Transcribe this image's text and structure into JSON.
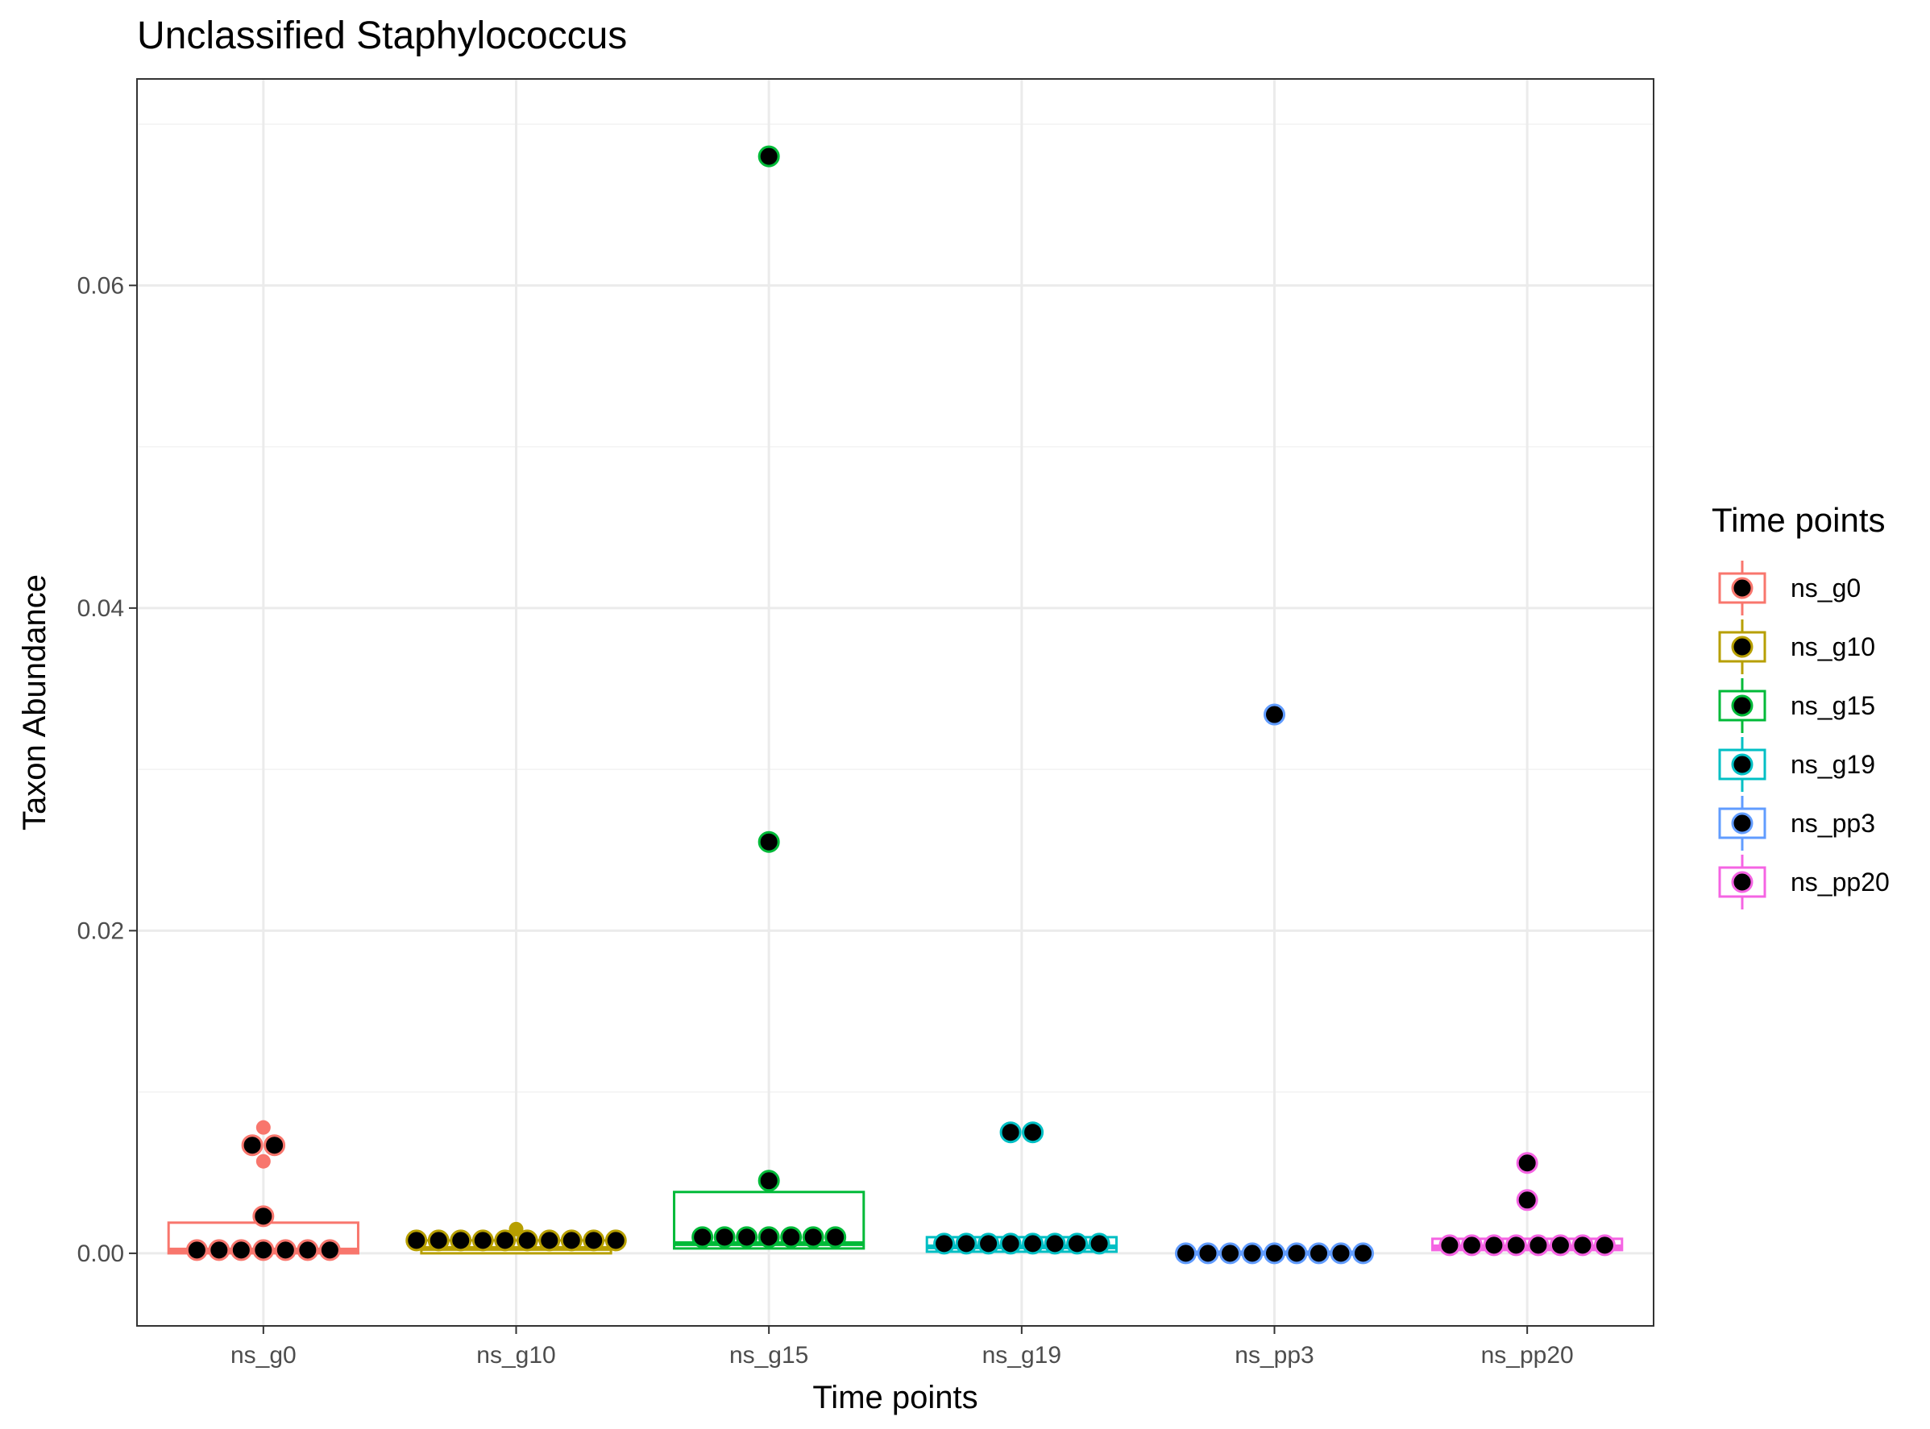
{
  "chart_data": {
    "type": "box",
    "title": "Unclassified  Staphylococcus",
    "xlabel": "Time points",
    "ylabel": "Taxon Abundance",
    "ylim": [
      -0.0045,
      0.0728
    ],
    "yticks": [
      0.0,
      0.02,
      0.04,
      0.06
    ],
    "ytick_labels": [
      "0.00",
      "0.02",
      "0.04",
      "0.06"
    ],
    "grid": true,
    "legend": {
      "title": "Time points",
      "position": "right"
    },
    "categories": [
      "ns_g0",
      "ns_g10",
      "ns_g15",
      "ns_g19",
      "ns_pp3",
      "ns_pp20"
    ],
    "series": [
      {
        "name": "ns_g0",
        "color": "#F8766D",
        "box": {
          "q1": 0.0,
          "median": 0.0002,
          "q3": 0.0019
        },
        "outliers": [
          0.0078,
          0.0057
        ],
        "points": [
          0.0067,
          0.0067,
          0.0023,
          0.0002,
          0.0002,
          0.0002,
          0.0002,
          0.0002,
          0.0002,
          0.0002
        ]
      },
      {
        "name": "ns_g10",
        "color": "#B79F00",
        "box": {
          "q1": 0.0,
          "median": 0.0003,
          "q3": 0.0008
        },
        "outliers": [
          0.0015
        ],
        "points": [
          0.0008,
          0.0008,
          0.0008,
          0.0008,
          0.0008,
          0.0008,
          0.0008,
          0.0008,
          0.0008,
          0.0008
        ]
      },
      {
        "name": "ns_g15",
        "color": "#00BA38",
        "box": {
          "q1": 0.0003,
          "median": 0.0006,
          "q3": 0.0038
        },
        "outliers": [],
        "points": [
          0.068,
          0.0255,
          0.0045,
          0.001,
          0.001,
          0.001,
          0.001,
          0.001,
          0.001,
          0.001
        ]
      },
      {
        "name": "ns_g19",
        "color": "#00BFC4",
        "box": {
          "q1": 0.0001,
          "median": 0.0004,
          "q3": 0.001
        },
        "outliers": [],
        "points": [
          0.0075,
          0.0075,
          0.0006,
          0.0006,
          0.0006,
          0.0006,
          0.0006,
          0.0006,
          0.0006,
          0.0006
        ]
      },
      {
        "name": "ns_pp3",
        "color": "#619CFF",
        "box": {
          "q1": 0.0,
          "median": 0.0,
          "q3": 0.0001
        },
        "outliers": [],
        "points": [
          0.0334,
          0.0,
          0.0,
          0.0,
          0.0,
          0.0,
          0.0,
          0.0,
          0.0,
          0.0
        ]
      },
      {
        "name": "ns_pp20",
        "color": "#F564E3",
        "box": {
          "q1": 0.0002,
          "median": 0.0004,
          "q3": 0.0009
        },
        "outliers": [],
        "points": [
          0.0056,
          0.0033,
          0.0005,
          0.0005,
          0.0005,
          0.0005,
          0.0005,
          0.0005,
          0.0005,
          0.0005
        ]
      }
    ]
  }
}
